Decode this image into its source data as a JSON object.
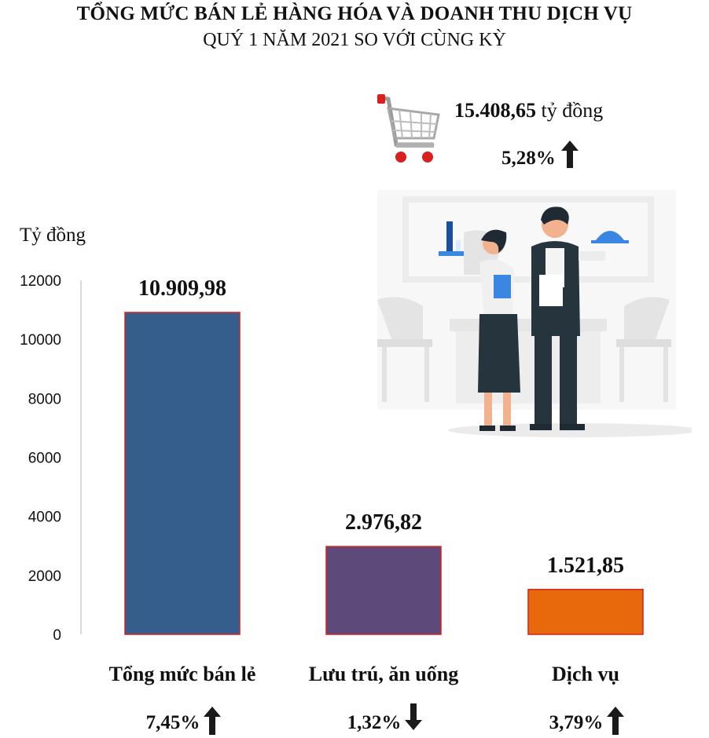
{
  "title": "TỔNG MỨC BÁN LẺ HÀNG HÓA VÀ DOANH THU DỊCH VỤ",
  "subtitle": "QUÝ 1 NĂM 2021 SO VỚI CÙNG KỲ",
  "summary": {
    "total_value": "15.408,65",
    "total_unit": "tỷ đồng",
    "total_change": "5,28%",
    "total_direction": "up"
  },
  "illustration": {
    "icons": [
      "shopping-cart-icon",
      "waiters-illustration"
    ]
  },
  "chart_data": {
    "type": "bar",
    "ylabel": "Tỷ đồng",
    "ylim": [
      0,
      12000
    ],
    "yticks": [
      "0",
      "2000",
      "4000",
      "6000",
      "8000",
      "10000",
      "12000"
    ],
    "grid": false,
    "categories": [
      "Tổng mức bán lẻ",
      "Lưu trú, ăn uống",
      "Dịch vụ"
    ],
    "values": [
      10909.98,
      2976.82,
      1521.85
    ],
    "value_labels": [
      "10.909,98",
      "2.976,82",
      "1.521,85"
    ],
    "changes": [
      "7,45%",
      "1,32%",
      "3,79%"
    ],
    "directions": [
      "up",
      "down",
      "up"
    ],
    "colors": [
      "#355E8C",
      "#5E4A7A",
      "#E8680C"
    ],
    "bar_border_color": "#D9201E"
  }
}
